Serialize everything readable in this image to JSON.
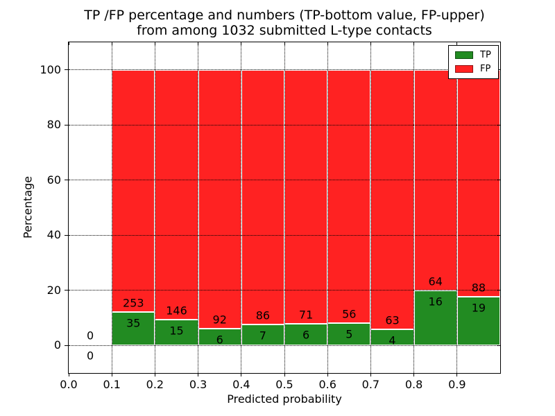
{
  "figure": {
    "title_line1": "TP /FP percentage and numbers (TP-bottom value, FP-upper)",
    "title_line2": "from among 1032 submitted L-type contacts",
    "xlabel": "Predicted probability",
    "ylabel": "Percentage"
  },
  "legend": {
    "items": [
      {
        "label": "TP",
        "color": "#228b22"
      },
      {
        "label": "FP",
        "color": "#ff2222"
      }
    ]
  },
  "chart_data": {
    "type": "bar",
    "subtype": "stacked-percentage",
    "title": "TP /FP percentage and numbers (TP-bottom value, FP-upper) from among 1032 submitted L-type contacts",
    "xlabel": "Predicted probability",
    "ylabel": "Percentage",
    "xlim": [
      0.0,
      1.0
    ],
    "ylim": [
      -10,
      110
    ],
    "xticks": [
      "0.0",
      "0.1",
      "0.2",
      "0.3",
      "0.4",
      "0.5",
      "0.6",
      "0.7",
      "0.8",
      "0.9"
    ],
    "yticks": [
      "0",
      "20",
      "40",
      "60",
      "80",
      "100"
    ],
    "grid": "dotted",
    "legend_position": "upper right",
    "total_contacts": 1032,
    "colors": {
      "TP": "#228b22",
      "FP": "#ff2222"
    },
    "series": [
      {
        "name": "TP",
        "counts": [
          0,
          35,
          15,
          6,
          7,
          6,
          5,
          4,
          16,
          19
        ]
      },
      {
        "name": "FP",
        "counts": [
          0,
          253,
          146,
          92,
          86,
          71,
          56,
          63,
          64,
          88
        ]
      }
    ],
    "bins": [
      {
        "range": [
          0.0,
          0.1
        ],
        "tp": 0,
        "fp": 0,
        "tp_pct": 0,
        "fp_pct": 0
      },
      {
        "range": [
          0.1,
          0.2
        ],
        "tp": 35,
        "fp": 253,
        "tp_pct": 12.15,
        "fp_pct": 87.85
      },
      {
        "range": [
          0.2,
          0.3
        ],
        "tp": 15,
        "fp": 146,
        "tp_pct": 9.32,
        "fp_pct": 90.68
      },
      {
        "range": [
          0.3,
          0.4
        ],
        "tp": 6,
        "fp": 92,
        "tp_pct": 6.12,
        "fp_pct": 93.88
      },
      {
        "range": [
          0.4,
          0.5
        ],
        "tp": 7,
        "fp": 86,
        "tp_pct": 7.53,
        "fp_pct": 92.47
      },
      {
        "range": [
          0.5,
          0.6
        ],
        "tp": 6,
        "fp": 71,
        "tp_pct": 7.79,
        "fp_pct": 92.21
      },
      {
        "range": [
          0.6,
          0.7
        ],
        "tp": 5,
        "fp": 56,
        "tp_pct": 8.2,
        "fp_pct": 91.8
      },
      {
        "range": [
          0.7,
          0.8
        ],
        "tp": 4,
        "fp": 63,
        "tp_pct": 5.97,
        "fp_pct": 94.03
      },
      {
        "range": [
          0.8,
          0.9
        ],
        "tp": 16,
        "fp": 64,
        "tp_pct": 20.0,
        "fp_pct": 80.0
      },
      {
        "range": [
          0.9,
          1.0
        ],
        "tp": 19,
        "fp": 88,
        "tp_pct": 17.76,
        "fp_pct": 82.24
      }
    ]
  }
}
